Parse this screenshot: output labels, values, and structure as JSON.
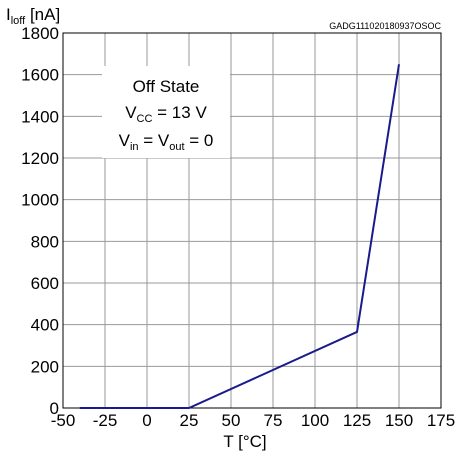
{
  "chart_data": {
    "type": "line",
    "ylabel": {
      "main": "I",
      "sub": "loff",
      "unit": " [nA]"
    },
    "xlabel": "T [°C]",
    "code": "GADG111020180937OSOC",
    "xlim": [
      -50,
      175
    ],
    "ylim": [
      0,
      1800
    ],
    "xticks": [
      -50,
      -25,
      0,
      25,
      50,
      75,
      100,
      125,
      150,
      175
    ],
    "yticks": [
      0,
      200,
      400,
      600,
      800,
      1000,
      1200,
      1400,
      1600,
      1800
    ],
    "grid": true,
    "annotation": {
      "line1": "Off State",
      "line2": {
        "main": "V",
        "sub": "CC",
        "rest": " = 13 V"
      },
      "line3": {
        "a": "V",
        "a_sub": "in",
        "mid": " = V",
        "b_sub": "out",
        "rest": " = 0"
      }
    },
    "series": [
      {
        "color": "#1a1a8c",
        "x": [
          -40,
          25,
          125,
          150
        ],
        "y": [
          0,
          0,
          365,
          1650
        ]
      }
    ]
  }
}
